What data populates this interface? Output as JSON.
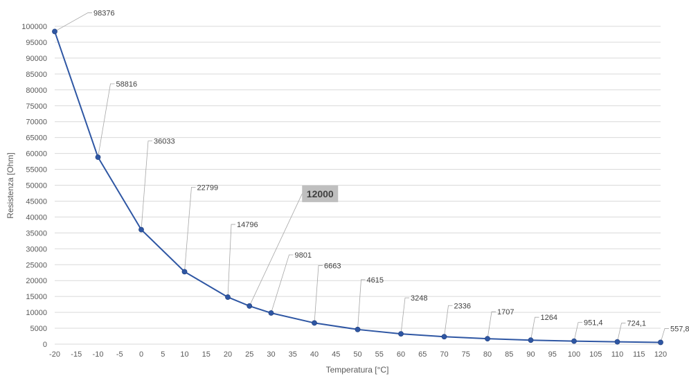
{
  "chart_data": {
    "type": "line",
    "xlabel": "Temperatura [°C]",
    "ylabel": "Resistenza [Ohm]",
    "xlim": [
      -20,
      120
    ],
    "ylim": [
      0,
      100000
    ],
    "x_ticks": [
      -20,
      -15,
      -10,
      -5,
      0,
      5,
      10,
      15,
      20,
      25,
      30,
      35,
      40,
      45,
      50,
      55,
      60,
      65,
      70,
      75,
      80,
      85,
      90,
      95,
      100,
      105,
      110,
      115,
      120
    ],
    "y_ticks": [
      0,
      5000,
      10000,
      15000,
      20000,
      25000,
      30000,
      35000,
      40000,
      45000,
      50000,
      55000,
      60000,
      65000,
      70000,
      75000,
      80000,
      85000,
      90000,
      95000,
      100000
    ],
    "grid": true,
    "series": [
      {
        "x": [
          -20,
          -10,
          0,
          10,
          20,
          25,
          30,
          40,
          50,
          60,
          70,
          80,
          90,
          100,
          110,
          120
        ],
        "y": [
          98376,
          58816,
          36033,
          22799,
          14796,
          12000,
          9801,
          6663,
          4615,
          3248,
          2336,
          1707,
          1264,
          951.4,
          724.1,
          557.8
        ],
        "labels": [
          "98376",
          "58816",
          "36033",
          "22799",
          "14796",
          "12000",
          "9801",
          "6663",
          "4615",
          "3248",
          "2336",
          "1707",
          "1264",
          "951,4",
          "724,1",
          "557,8"
        ],
        "highlight_index": 5,
        "color": "#2e56a3"
      }
    ],
    "colors": {
      "line": "#2e56a3",
      "grid": "#d9d9d9",
      "leader": "#a6a6a6",
      "highlight_bg": "#bfbfbf"
    }
  }
}
